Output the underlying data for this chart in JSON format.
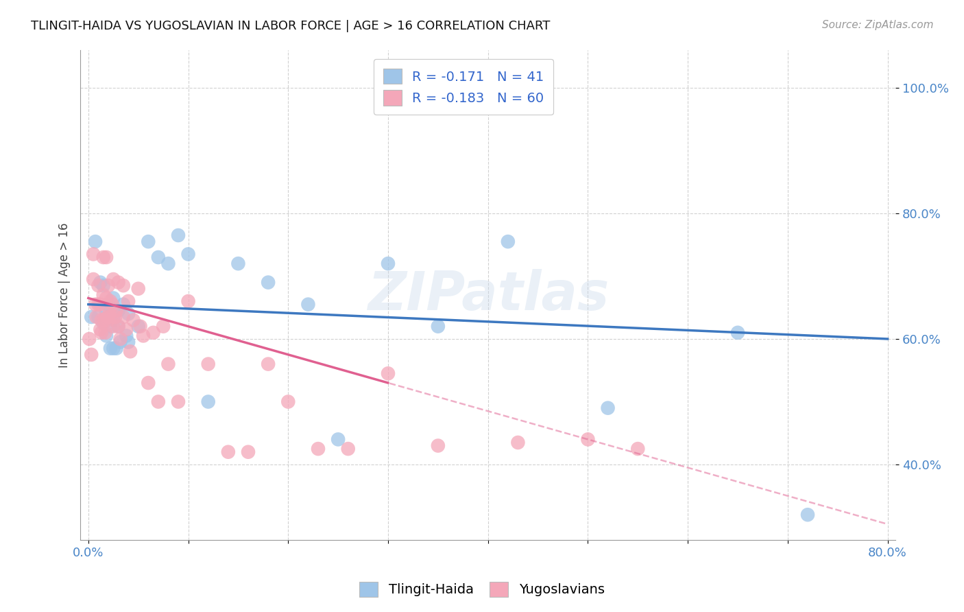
{
  "title": "TLINGIT-HAIDA VS YUGOSLAVIAN IN LABOR FORCE | AGE > 16 CORRELATION CHART",
  "source": "Source: ZipAtlas.com",
  "ylabel": "In Labor Force | Age > 16",
  "xlim": [
    -0.008,
    0.808
  ],
  "ylim": [
    0.28,
    1.06
  ],
  "yticks": [
    0.4,
    0.6,
    0.8,
    1.0
  ],
  "yticklabels": [
    "40.0%",
    "60.0%",
    "80.0%",
    "100.0%"
  ],
  "xtick_positions": [
    0.0,
    0.1,
    0.2,
    0.3,
    0.4,
    0.5,
    0.6,
    0.7,
    0.8
  ],
  "xticklabels": [
    "0.0%",
    "",
    "",
    "",
    "",
    "",
    "",
    "",
    "80.0%"
  ],
  "blue_scatter_color": "#9fc5e8",
  "pink_scatter_color": "#f4a7b9",
  "blue_line_color": "#3d78c0",
  "pink_line_color": "#e06090",
  "blue_label": "Tlingit-Haida",
  "pink_label": "Yugoslavians",
  "R_blue": "-0.171",
  "N_blue": "41",
  "R_pink": "-0.183",
  "N_pink": "60",
  "watermark": "ZIPatlas",
  "tlingit_x": [
    0.003,
    0.007,
    0.01,
    0.012,
    0.015,
    0.015,
    0.018,
    0.018,
    0.02,
    0.02,
    0.022,
    0.022,
    0.025,
    0.025,
    0.025,
    0.028,
    0.028,
    0.03,
    0.03,
    0.032,
    0.035,
    0.038,
    0.04,
    0.04,
    0.05,
    0.06,
    0.07,
    0.08,
    0.09,
    0.1,
    0.12,
    0.15,
    0.18,
    0.22,
    0.25,
    0.3,
    0.35,
    0.42,
    0.52,
    0.65,
    0.72
  ],
  "tlingit_y": [
    0.635,
    0.755,
    0.635,
    0.69,
    0.685,
    0.625,
    0.645,
    0.605,
    0.655,
    0.635,
    0.62,
    0.585,
    0.665,
    0.63,
    0.585,
    0.645,
    0.585,
    0.645,
    0.62,
    0.595,
    0.655,
    0.605,
    0.64,
    0.595,
    0.62,
    0.755,
    0.73,
    0.72,
    0.765,
    0.735,
    0.5,
    0.72,
    0.69,
    0.655,
    0.44,
    0.72,
    0.62,
    0.755,
    0.49,
    0.61,
    0.32
  ],
  "yugoslav_x": [
    0.001,
    0.003,
    0.005,
    0.005,
    0.007,
    0.008,
    0.01,
    0.01,
    0.012,
    0.012,
    0.013,
    0.013,
    0.015,
    0.015,
    0.016,
    0.017,
    0.018,
    0.018,
    0.019,
    0.02,
    0.02,
    0.021,
    0.022,
    0.022,
    0.024,
    0.025,
    0.025,
    0.027,
    0.028,
    0.03,
    0.03,
    0.032,
    0.035,
    0.035,
    0.038,
    0.04,
    0.042,
    0.045,
    0.05,
    0.052,
    0.055,
    0.06,
    0.065,
    0.07,
    0.075,
    0.08,
    0.09,
    0.1,
    0.12,
    0.14,
    0.16,
    0.18,
    0.2,
    0.23,
    0.26,
    0.3,
    0.35,
    0.43,
    0.5,
    0.55
  ],
  "yugoslav_y": [
    0.6,
    0.575,
    0.735,
    0.695,
    0.655,
    0.635,
    0.685,
    0.655,
    0.615,
    0.655,
    0.63,
    0.61,
    0.73,
    0.67,
    0.63,
    0.61,
    0.73,
    0.665,
    0.635,
    0.685,
    0.63,
    0.64,
    0.66,
    0.635,
    0.655,
    0.695,
    0.62,
    0.635,
    0.645,
    0.69,
    0.62,
    0.6,
    0.635,
    0.685,
    0.615,
    0.66,
    0.58,
    0.63,
    0.68,
    0.62,
    0.605,
    0.53,
    0.61,
    0.5,
    0.62,
    0.56,
    0.5,
    0.66,
    0.56,
    0.42,
    0.42,
    0.56,
    0.5,
    0.425,
    0.425,
    0.545,
    0.43,
    0.435,
    0.44,
    0.425
  ]
}
